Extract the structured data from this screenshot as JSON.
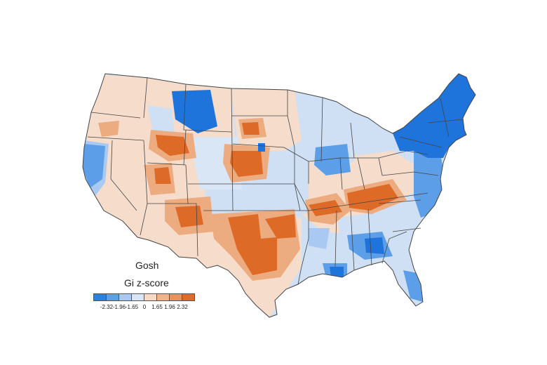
{
  "map": {
    "title": "Gosh",
    "legend_title": "Gi z-score",
    "legend": {
      "colors": [
        "#2a7fe0",
        "#5c9fe8",
        "#a9c9f2",
        "#d9e6f6",
        "#f7d9c6",
        "#efb48a",
        "#e8935a",
        "#e06a2a"
      ],
      "ticks": [
        "-2.32",
        "-1.96",
        "-1.65",
        "0",
        "1.65",
        "1.96",
        "2.32"
      ]
    },
    "colors": {
      "strong_cold": "#1f74dc",
      "cold": "#5c9fe8",
      "light_cold": "#cfe0f5",
      "neutral_warm": "#f5dccb",
      "warm": "#ecac80",
      "strong_warm": "#dd6a26",
      "state_border": "#444444"
    }
  }
}
